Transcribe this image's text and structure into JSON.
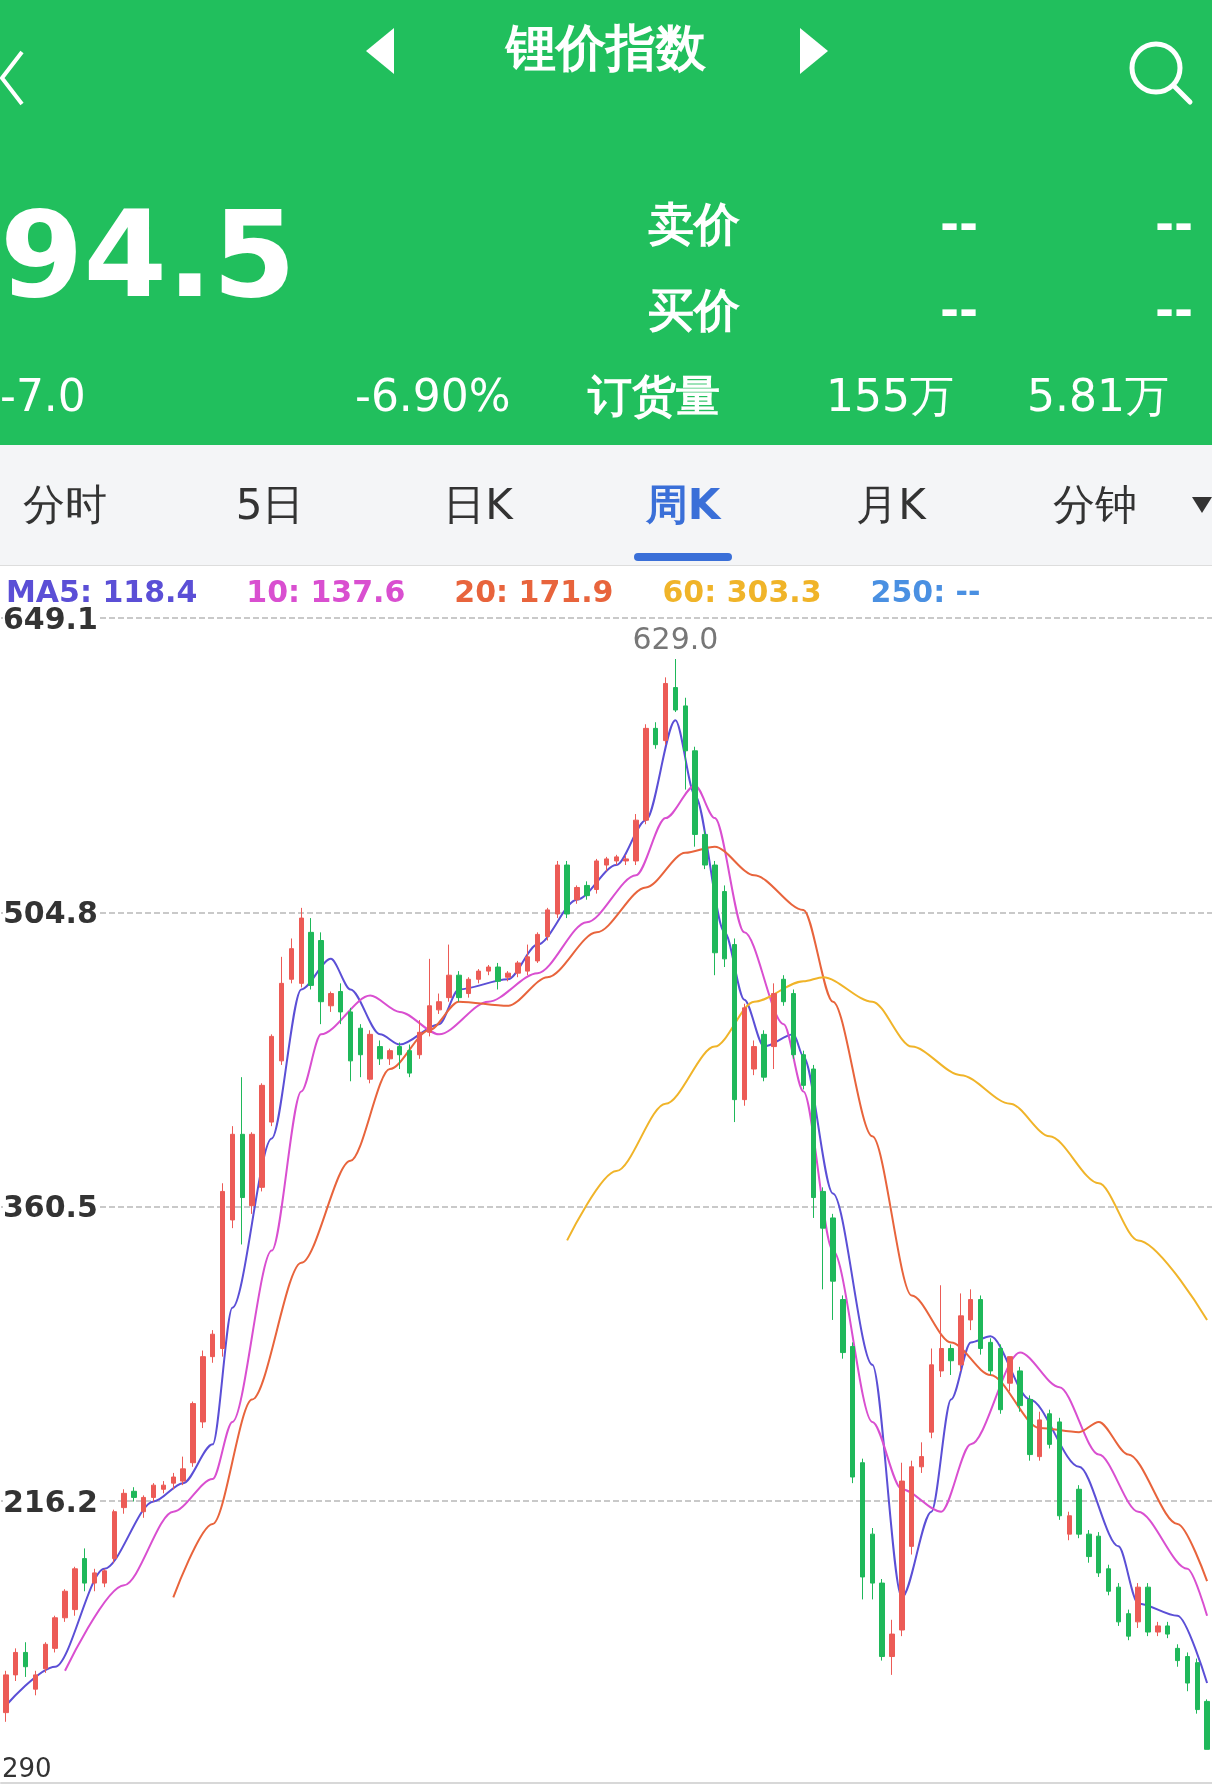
{
  "chart_data": {
    "type": "candlestick",
    "title": "锂价指数",
    "categories": [
      null,
      null,
      null,
      null,
      null,
      null,
      null,
      null,
      null,
      null,
      null,
      null,
      null,
      null,
      null,
      null,
      null,
      null,
      null,
      null,
      null,
      null,
      null,
      null,
      null,
      null,
      null,
      null,
      null,
      null,
      null,
      null,
      null,
      null,
      null,
      null,
      null,
      null,
      null,
      null,
      null,
      null,
      null,
      null,
      null,
      null,
      null,
      null,
      null,
      null,
      null,
      null,
      null,
      null,
      null,
      null,
      null,
      null,
      null,
      null,
      null,
      null,
      null,
      null,
      null,
      null,
      null,
      null,
      null,
      null,
      null,
      null,
      null,
      null,
      null,
      null,
      null,
      null,
      null,
      null,
      null,
      null,
      null,
      null,
      null,
      null,
      null,
      null,
      null,
      null,
      null,
      null,
      null,
      null,
      null,
      null,
      null,
      null,
      null,
      null,
      null,
      null,
      null,
      null,
      null,
      null,
      null,
      null,
      null,
      null,
      null,
      null,
      null,
      null,
      null,
      null,
      null,
      null,
      null,
      null,
      null,
      null,
      null
    ],
    "ohlc": [
      [
        112.5,
        133,
        108,
        131
      ],
      [
        131,
        144,
        128,
        142
      ],
      [
        142,
        147,
        130,
        135
      ],
      [
        124,
        133,
        121,
        131
      ],
      [
        134,
        147,
        132,
        146
      ],
      [
        144,
        160,
        142,
        159
      ],
      [
        159,
        173,
        157,
        172
      ],
      [
        163,
        184,
        160,
        183
      ],
      [
        188,
        193,
        172,
        176
      ],
      [
        176,
        183,
        172,
        181
      ],
      [
        176,
        183,
        174,
        182
      ],
      [
        188,
        212,
        186,
        211
      ],
      [
        213,
        222,
        210,
        220
      ],
      [
        221,
        223,
        216,
        218
      ],
      [
        211,
        219,
        208,
        218
      ],
      [
        218,
        225,
        216,
        224
      ],
      [
        222,
        226,
        220,
        224
      ],
      [
        225,
        230,
        222,
        228
      ],
      [
        226,
        238,
        224,
        232
      ],
      [
        235,
        265,
        233,
        264
      ],
      [
        255,
        290,
        252,
        287
      ],
      [
        287,
        300,
        284,
        298
      ],
      [
        291,
        372,
        287,
        368
      ],
      [
        354,
        400,
        350,
        396
      ],
      [
        396,
        424,
        342,
        365
      ],
      [
        361,
        397,
        357,
        396
      ],
      [
        370,
        421,
        368,
        420
      ],
      [
        402,
        445,
        400,
        444
      ],
      [
        432,
        483,
        430,
        470
      ],
      [
        472,
        492,
        470,
        487
      ],
      [
        470,
        507,
        468,
        502
      ],
      [
        495,
        502,
        467,
        469
      ],
      [
        491,
        495,
        450,
        461
      ],
      [
        459,
        466,
        456,
        465
      ],
      [
        466,
        470,
        450,
        456
      ],
      [
        456,
        458,
        422,
        432
      ],
      [
        448,
        450,
        424,
        435
      ],
      [
        423,
        447,
        421,
        445
      ],
      [
        439,
        442,
        430,
        433
      ],
      [
        433,
        438,
        430,
        437
      ],
      [
        439,
        441,
        428,
        435
      ],
      [
        437,
        440,
        424,
        426
      ],
      [
        435,
        452,
        433,
        446
      ],
      [
        446,
        482,
        444,
        459
      ],
      [
        457,
        465,
        455,
        461
      ],
      [
        463,
        489,
        461,
        474
      ],
      [
        474,
        476,
        461,
        463
      ],
      [
        465,
        473,
        463,
        472
      ],
      [
        472,
        477,
        470,
        476
      ],
      [
        476,
        479,
        474,
        478
      ],
      [
        478,
        480,
        467,
        471
      ],
      [
        473,
        476,
        471,
        475
      ],
      [
        475,
        481,
        473,
        480
      ],
      [
        476,
        489,
        474,
        483
      ],
      [
        481,
        495,
        480,
        494
      ],
      [
        493,
        507,
        491,
        506
      ],
      [
        504,
        530,
        502,
        528
      ],
      [
        528,
        530,
        502,
        504
      ],
      [
        511,
        518,
        509,
        517
      ],
      [
        518,
        520,
        511,
        513
      ],
      [
        516,
        531,
        514,
        530
      ],
      [
        528,
        532,
        525,
        531
      ],
      [
        530,
        533,
        528,
        532
      ],
      [
        530,
        533,
        528,
        531
      ],
      [
        530,
        553,
        528,
        550
      ],
      [
        550,
        597,
        548,
        595
      ],
      [
        595,
        598,
        585,
        587
      ],
      [
        589,
        620,
        587,
        617
      ],
      [
        615,
        629,
        603,
        604
      ],
      [
        606,
        610,
        565,
        584
      ],
      [
        584,
        586,
        537,
        543
      ],
      [
        543,
        545,
        526,
        528
      ],
      [
        528,
        530,
        474,
        485
      ],
      [
        515,
        518,
        478,
        482
      ],
      [
        489,
        492,
        402,
        413
      ],
      [
        413,
        460,
        410,
        458
      ],
      [
        428,
        442,
        425,
        439
      ],
      [
        445,
        447,
        422,
        424
      ],
      [
        439,
        470,
        428,
        465
      ],
      [
        472,
        474,
        459,
        461
      ],
      [
        465,
        467,
        433,
        435
      ],
      [
        435,
        437,
        418,
        420
      ],
      [
        428,
        430,
        355,
        365
      ],
      [
        368,
        370,
        320,
        350
      ],
      [
        355,
        357,
        305,
        324
      ],
      [
        315,
        317,
        286,
        289
      ],
      [
        292,
        294,
        225,
        228
      ],
      [
        235,
        237,
        168,
        179
      ],
      [
        200,
        203,
        168,
        176
      ],
      [
        176,
        178,
        138,
        140
      ],
      [
        140,
        158,
        131,
        151
      ],
      [
        153,
        235,
        150,
        226
      ],
      [
        194,
        236,
        190,
        233
      ],
      [
        233,
        245,
        230,
        238
      ],
      [
        250,
        291,
        247,
        283
      ],
      [
        280,
        322,
        277,
        291
      ],
      [
        291,
        293,
        278,
        285
      ],
      [
        283,
        318,
        280,
        307
      ],
      [
        305,
        320,
        300,
        315
      ],
      [
        315,
        317,
        288,
        291
      ],
      [
        294,
        296,
        278,
        280
      ],
      [
        291,
        293,
        259,
        261
      ],
      [
        274,
        287,
        270,
        287
      ],
      [
        280,
        282,
        260,
        263
      ],
      [
        266,
        268,
        236,
        239
      ],
      [
        238,
        260,
        236,
        256
      ],
      [
        259,
        261,
        242,
        244
      ],
      [
        255,
        257,
        207,
        209
      ],
      [
        200,
        211,
        197,
        209
      ],
      [
        222,
        224,
        198,
        200
      ],
      [
        200,
        202,
        186,
        189
      ],
      [
        199,
        201,
        179,
        181
      ],
      [
        183,
        185,
        170,
        172
      ],
      [
        174,
        176,
        155,
        157
      ],
      [
        161,
        163,
        148,
        150
      ],
      [
        157,
        176,
        154,
        174
      ],
      [
        174,
        176,
        150,
        152
      ],
      [
        152,
        157,
        150,
        155
      ],
      [
        155,
        157,
        149,
        151
      ],
      [
        144,
        146,
        135,
        138
      ],
      [
        140,
        142,
        123,
        127
      ],
      [
        137,
        139,
        112,
        114
      ],
      [
        118,
        119,
        94.5,
        94.5
      ]
    ],
    "colors": [
      "#ec5b56",
      "#ec5b56",
      "#1fb85a",
      "#ec5b56",
      "#ec5b56",
      "#ec5b56",
      "#ec5b56",
      "#ec5b56",
      "#1fb85a",
      "#ec5b56",
      "#ec5b56",
      "#ec5b56",
      "#ec5b56",
      "#1fb85a",
      "#ec5b56",
      "#ec5b56",
      "#ec5b56",
      "#ec5b56",
      "#ec5b56",
      "#ec5b56",
      "#ec5b56",
      "#ec5b56",
      "#ec5b56",
      "#ec5b56",
      "#1fb85a",
      "#ec5b56",
      "#ec5b56",
      "#ec5b56",
      "#ec5b56",
      "#ec5b56",
      "#ec5b56",
      "#1fb85a",
      "#1fb85a",
      "#ec5b56",
      "#1fb85a",
      "#1fb85a",
      "#1fb85a",
      "#ec5b56",
      "#1fb85a",
      "#ec5b56",
      "#1fb85a",
      "#1fb85a",
      "#ec5b56",
      "#ec5b56",
      "#ec5b56",
      "#ec5b56",
      "#1fb85a",
      "#ec5b56",
      "#ec5b56",
      "#ec5b56",
      "#1fb85a",
      "#ec5b56",
      "#ec5b56",
      "#ec5b56",
      "#ec5b56",
      "#ec5b56",
      "#ec5b56",
      "#1fb85a",
      "#ec5b56",
      "#1fb85a",
      "#ec5b56",
      "#ec5b56",
      "#ec5b56",
      "#ec5b56",
      "#ec5b56",
      "#ec5b56",
      "#1fb85a",
      "#ec5b56",
      "#1fb85a",
      "#1fb85a",
      "#1fb85a",
      "#1fb85a",
      "#1fb85a",
      "#1fb85a",
      "#1fb85a",
      "#ec5b56",
      "#ec5b56",
      "#1fb85a",
      "#ec5b56",
      "#1fb85a",
      "#1fb85a",
      "#1fb85a",
      "#1fb85a",
      "#1fb85a",
      "#1fb85a",
      "#1fb85a",
      "#1fb85a",
      "#1fb85a",
      "#1fb85a",
      "#1fb85a",
      "#ec5b56",
      "#ec5b56",
      "#ec5b56",
      "#ec5b56",
      "#ec5b56",
      "#ec5b56",
      "#1fb85a",
      "#ec5b56",
      "#ec5b56",
      "#1fb85a",
      "#1fb85a",
      "#1fb85a",
      "#ec5b56",
      "#1fb85a",
      "#1fb85a",
      "#ec5b56",
      "#1fb85a",
      "#1fb85a",
      "#ec5b56",
      "#1fb85a",
      "#1fb85a",
      "#1fb85a",
      "#1fb85a",
      "#1fb85a",
      "#1fb85a",
      "#ec5b56",
      "#1fb85a",
      "#ec5b56",
      "#1fb85a",
      "#1fb85a",
      "#1fb85a",
      "#1fb85a",
      "#1fb85a"
    ],
    "series": [
      {
        "type": "line",
        "name": "MA5: 118.4",
        "color": "#5b4fd6",
        "values": [
          116,
          null,
          null,
          null,
          null,
          135,
          null,
          null,
          null,
          null,
          183,
          null,
          null,
          null,
          null,
          216,
          null,
          null,
          225,
          null,
          null,
          244,
          null,
          311,
          null,
          null,
          null,
          394,
          null,
          null,
          467,
          null,
          null,
          482,
          null,
          467,
          null,
          null,
          445,
          null,
          440,
          null,
          null,
          null,
          450,
          null,
          467,
          null,
          null,
          null,
          null,
          472,
          null,
          null,
          489,
          null,
          null,
          null,
          511,
          null,
          null,
          null,
          528,
          null,
          null,
          550,
          null,
          null,
          599,
          null,
          562,
          null,
          null,
          495,
          null,
          462,
          null,
          439,
          null,
          null,
          445,
          434,
          null,
          null,
          367,
          null,
          null,
          null,
          283,
          null,
          null,
          169,
          null,
          null,
          211,
          null,
          266,
          null,
          294,
          null,
          297,
          null,
          null,
          null,
          266,
          null,
          null,
          null,
          null,
          233,
          null,
          null,
          null,
          194,
          null,
          166,
          null,
          null,
          null,
          160,
          null,
          null,
          127
        ]
      },
      {
        "type": "line",
        "name": "10: 137.6",
        "color": "#d94fd0",
        "values": [
          null,
          null,
          null,
          null,
          null,
          null,
          133,
          null,
          null,
          null,
          null,
          null,
          175,
          null,
          null,
          null,
          null,
          211,
          null,
          null,
          null,
          227,
          null,
          255,
          null,
          null,
          null,
          339,
          null,
          null,
          417,
          null,
          445,
          null,
          null,
          null,
          null,
          464,
          null,
          null,
          456,
          null,
          null,
          null,
          445,
          null,
          null,
          null,
          null,
          461,
          null,
          null,
          null,
          null,
          475,
          null,
          null,
          null,
          null,
          500,
          null,
          null,
          null,
          null,
          523,
          null,
          null,
          551,
          null,
          null,
          567,
          null,
          551,
          null,
          null,
          495,
          null,
          null,
          null,
          450,
          null,
          417,
          null,
          null,
          339,
          null,
          null,
          null,
          255,
          null,
          null,
          222,
          null,
          null,
          null,
          211,
          null,
          null,
          244,
          null,
          null,
          null,
          null,
          289,
          null,
          null,
          null,
          272,
          null,
          null,
          null,
          239,
          null,
          null,
          null,
          211,
          null,
          null,
          null,
          null,
          183,
          null,
          160
        ]
      },
      {
        "type": "line",
        "name": "20: 171.9",
        "color": "#e8643c",
        "values": [
          null,
          null,
          null,
          null,
          null,
          null,
          null,
          null,
          null,
          null,
          null,
          null,
          null,
          null,
          null,
          null,
          null,
          169,
          null,
          null,
          null,
          205,
          null,
          null,
          null,
          266,
          null,
          null,
          null,
          null,
          333,
          null,
          null,
          null,
          null,
          383,
          null,
          null,
          null,
          428,
          null,
          null,
          null,
          447,
          null,
          null,
          461,
          null,
          null,
          null,
          null,
          459,
          null,
          null,
          null,
          473,
          null,
          null,
          null,
          null,
          495,
          null,
          null,
          null,
          null,
          517,
          null,
          null,
          null,
          534,
          null,
          null,
          537,
          null,
          null,
          null,
          523,
          null,
          null,
          null,
          null,
          506,
          null,
          null,
          461,
          null,
          null,
          null,
          395,
          null,
          null,
          null,
          317,
          null,
          null,
          null,
          294,
          null,
          null,
          null,
          278,
          null,
          null,
          null,
          null,
          252,
          null,
          null,
          null,
          250,
          null,
          255,
          null,
          null,
          239,
          null,
          null,
          null,
          null,
          205,
          null,
          null,
          177
        ]
      },
      {
        "type": "line",
        "name": "60: 303.3",
        "color": "#f0b429",
        "values": [
          null,
          null,
          null,
          null,
          null,
          null,
          null,
          null,
          null,
          null,
          null,
          null,
          null,
          null,
          null,
          null,
          null,
          null,
          null,
          null,
          null,
          null,
          null,
          null,
          null,
          null,
          null,
          null,
          null,
          null,
          null,
          null,
          null,
          null,
          null,
          null,
          null,
          null,
          null,
          null,
          null,
          null,
          null,
          null,
          null,
          null,
          null,
          null,
          null,
          null,
          null,
          null,
          null,
          null,
          null,
          null,
          null,
          344,
          null,
          null,
          null,
          null,
          378,
          null,
          null,
          null,
          null,
          411,
          null,
          null,
          null,
          null,
          439,
          null,
          null,
          null,
          461,
          null,
          null,
          null,
          null,
          471,
          null,
          473,
          null,
          null,
          null,
          null,
          461,
          null,
          null,
          null,
          439,
          null,
          null,
          null,
          null,
          425,
          null,
          null,
          null,
          null,
          411,
          null,
          null,
          null,
          395,
          null,
          null,
          null,
          null,
          372,
          null,
          null,
          null,
          344,
          null,
          null,
          null,
          null,
          null,
          null,
          305
        ]
      },
      {
        "type": "line",
        "name": "250: --",
        "color": "#4a90e2",
        "values": [
          null,
          null,
          null,
          null,
          null,
          null,
          null,
          null,
          null,
          null,
          null,
          null,
          null,
          null,
          null,
          null,
          null,
          null,
          null,
          null,
          null,
          null,
          null,
          null,
          null,
          null,
          null,
          null,
          null,
          null,
          null,
          null,
          null,
          null,
          null,
          null,
          null,
          null,
          null,
          null,
          null,
          null,
          null,
          null,
          null,
          null,
          null,
          null,
          null,
          null,
          null,
          null,
          null,
          null,
          null,
          null,
          null,
          null,
          null,
          null,
          null,
          null,
          null,
          null,
          null,
          null,
          null,
          null,
          null,
          null,
          null,
          null,
          null,
          null,
          null,
          null,
          null,
          null,
          null,
          null,
          null,
          null,
          null,
          null,
          null,
          null,
          null,
          null,
          null,
          null,
          null,
          null,
          null,
          null,
          null,
          null,
          null,
          null,
          null,
          null,
          null,
          null,
          null,
          null,
          null,
          null,
          null,
          null,
          null,
          null,
          null,
          null,
          null,
          null,
          null,
          null,
          null,
          null,
          null,
          null,
          null,
          null,
          null
        ]
      }
    ],
    "ylim": [
      78,
      649.1
    ],
    "yticks": [
      649.1,
      504.8,
      360.5,
      216.2
    ],
    "grid": "y",
    "legend": "top left",
    "tick_labels": "y",
    "marker": "none",
    "annotations": [
      "94.5",
      "-7.0",
      "-6.90%",
      "卖价",
      "--",
      "--",
      "买价",
      "--",
      "--",
      "订货量",
      "155万",
      "5.81万",
      "分时",
      "5日",
      "日K",
      "周K",
      "月K",
      "分钟",
      {
        "text": "629.0",
        "y": 629
      },
      "290"
    ]
  }
}
